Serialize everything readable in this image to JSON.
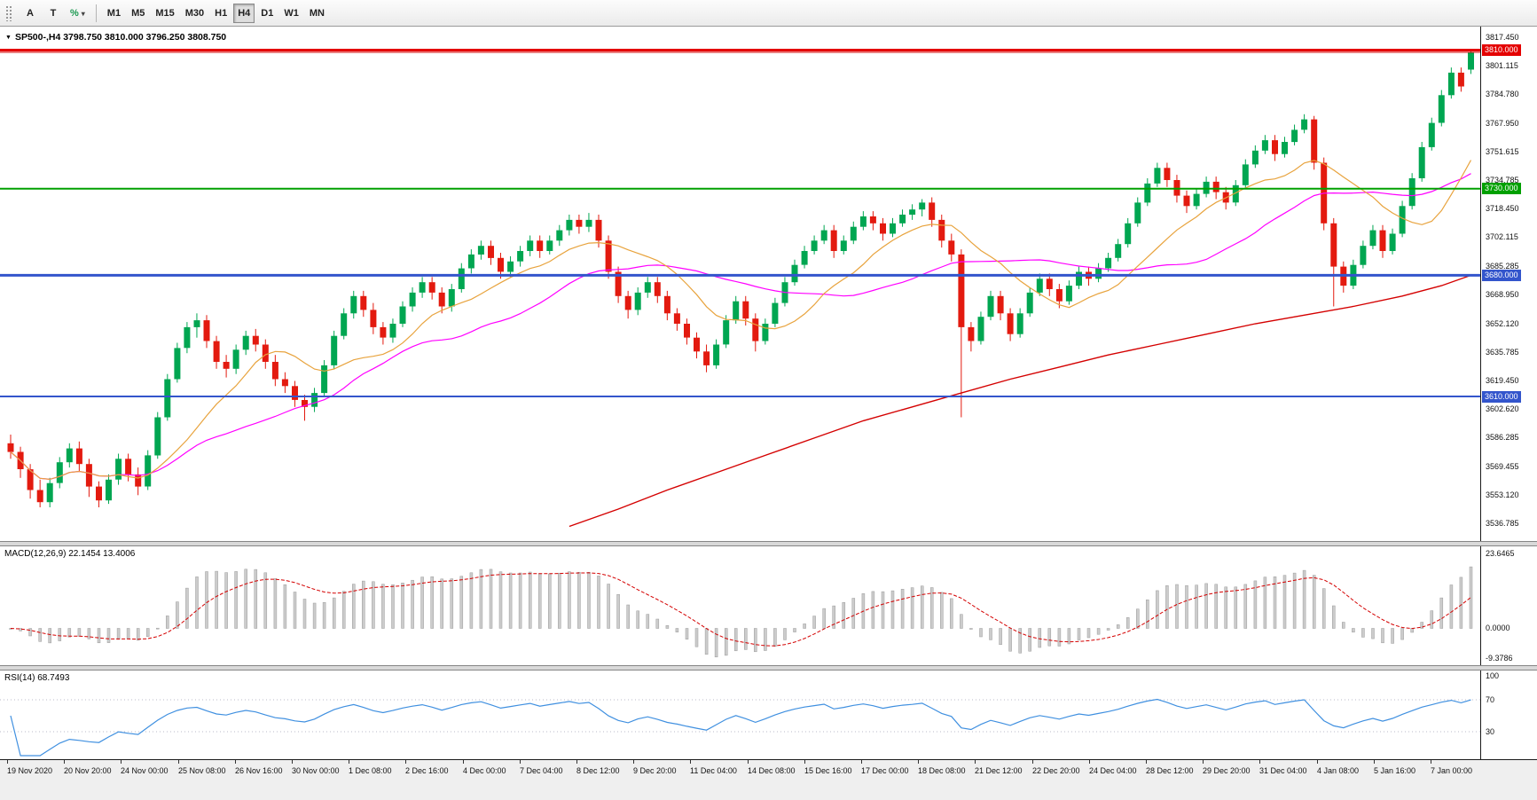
{
  "toolbar": {
    "left_buttons": [
      {
        "label": "A"
      },
      {
        "label": "T"
      }
    ],
    "percent_icon": "%",
    "caret": "▾",
    "timeframes": [
      "M1",
      "M5",
      "M15",
      "M30",
      "H1",
      "H4",
      "D1",
      "W1",
      "MN"
    ],
    "active_timeframe": "H4"
  },
  "symbol_header": {
    "marker": "▼",
    "text": "SP500-,H4 3798.750 3810.000 3796.250 3808.750"
  },
  "chart_data": {
    "type": "candlestick",
    "symbol": "SP500-",
    "timeframe": "H4",
    "ohlc_display": {
      "open": "3798.750",
      "high": "3810.000",
      "low": "3796.250",
      "close": "3808.750"
    },
    "style": {
      "up_color": "#00A651",
      "down_color": "#E31A0F",
      "ma_orange": "#E8A33D",
      "ma_magenta": "#FF00FF",
      "ma_red": "#D40000"
    },
    "price_axis": {
      "min": 3536.785,
      "max": 3817.45,
      "ticks": [
        "3817.450",
        "3801.115",
        "3784.780",
        "3767.950",
        "3751.615",
        "3734.785",
        "3718.450",
        "3702.115",
        "3685.285",
        "3668.950",
        "3652.120",
        "3635.785",
        "3619.450",
        "3602.620",
        "3586.285",
        "3569.455",
        "3553.120",
        "3536.785"
      ]
    },
    "hlines": [
      {
        "price": 3810.0,
        "label": "3810.000",
        "color": "#E40000",
        "width": 3
      },
      {
        "price": 3730.0,
        "label": "3730.000",
        "color": "#00A000",
        "width": 2
      },
      {
        "price": 3680.0,
        "label": "3680.000",
        "color": "#3355CC",
        "width": 3
      },
      {
        "price": 3610.0,
        "label": "3610.000",
        "color": "#3355CC",
        "width": 2
      }
    ],
    "price_line": {
      "price": 3808.75,
      "color": "#D40000"
    },
    "slow_ma": {
      "color": "#D40000",
      "points": [
        [
          57,
          3535
        ],
        [
          62,
          3545
        ],
        [
          67,
          3556
        ],
        [
          72,
          3566
        ],
        [
          77,
          3576
        ],
        [
          82,
          3586
        ],
        [
          87,
          3596
        ],
        [
          92,
          3604
        ],
        [
          97,
          3612
        ],
        [
          102,
          3620
        ],
        [
          107,
          3627
        ],
        [
          112,
          3634
        ],
        [
          117,
          3640
        ],
        [
          122,
          3646
        ],
        [
          127,
          3652
        ],
        [
          132,
          3657
        ],
        [
          137,
          3662
        ],
        [
          142,
          3668
        ],
        [
          146,
          3674
        ],
        [
          149,
          3680
        ]
      ]
    },
    "ma_smoothing": {
      "orange_window": 12,
      "magenta_window": 26
    },
    "candles": [
      [
        3583,
        3588,
        3574,
        3578
      ],
      [
        3578,
        3581,
        3563,
        3568
      ],
      [
        3568,
        3571,
        3551,
        3556
      ],
      [
        3556,
        3562,
        3546,
        3549
      ],
      [
        3549,
        3563,
        3546,
        3560
      ],
      [
        3560,
        3575,
        3557,
        3572
      ],
      [
        3572,
        3583,
        3569,
        3580
      ],
      [
        3580,
        3584,
        3567,
        3571
      ],
      [
        3571,
        3574,
        3552,
        3558
      ],
      [
        3558,
        3561,
        3546,
        3550
      ],
      [
        3550,
        3565,
        3548,
        3562
      ],
      [
        3562,
        3577,
        3559,
        3574
      ],
      [
        3574,
        3577,
        3561,
        3565
      ],
      [
        3565,
        3569,
        3553,
        3558
      ],
      [
        3558,
        3579,
        3556,
        3576
      ],
      [
        3576,
        3601,
        3574,
        3598
      ],
      [
        3598,
        3623,
        3596,
        3620
      ],
      [
        3620,
        3641,
        3618,
        3638
      ],
      [
        3638,
        3653,
        3635,
        3650
      ],
      [
        3650,
        3658,
        3644,
        3654
      ],
      [
        3654,
        3657,
        3638,
        3642
      ],
      [
        3642,
        3645,
        3626,
        3630
      ],
      [
        3630,
        3634,
        3621,
        3626
      ],
      [
        3626,
        3640,
        3623,
        3637
      ],
      [
        3637,
        3648,
        3634,
        3645
      ],
      [
        3645,
        3649,
        3636,
        3640
      ],
      [
        3640,
        3643,
        3626,
        3630
      ],
      [
        3630,
        3634,
        3616,
        3620
      ],
      [
        3620,
        3624,
        3612,
        3616
      ],
      [
        3616,
        3619,
        3604,
        3608
      ],
      [
        3608,
        3611,
        3596,
        3604
      ],
      [
        3604,
        3615,
        3601,
        3612
      ],
      [
        3612,
        3631,
        3610,
        3628
      ],
      [
        3628,
        3648,
        3626,
        3645
      ],
      [
        3645,
        3661,
        3643,
        3658
      ],
      [
        3658,
        3671,
        3655,
        3668
      ],
      [
        3668,
        3671,
        3656,
        3660
      ],
      [
        3660,
        3664,
        3646,
        3650
      ],
      [
        3650,
        3653,
        3640,
        3644
      ],
      [
        3644,
        3655,
        3641,
        3652
      ],
      [
        3652,
        3665,
        3650,
        3662
      ],
      [
        3662,
        3673,
        3659,
        3670
      ],
      [
        3670,
        3679,
        3667,
        3676
      ],
      [
        3676,
        3679,
        3666,
        3670
      ],
      [
        3670,
        3673,
        3658,
        3662
      ],
      [
        3662,
        3675,
        3659,
        3672
      ],
      [
        3672,
        3687,
        3670,
        3684
      ],
      [
        3684,
        3695,
        3681,
        3692
      ],
      [
        3692,
        3700,
        3689,
        3697
      ],
      [
        3697,
        3700,
        3686,
        3690
      ],
      [
        3690,
        3693,
        3678,
        3682
      ],
      [
        3682,
        3691,
        3679,
        3688
      ],
      [
        3688,
        3697,
        3685,
        3694
      ],
      [
        3694,
        3703,
        3691,
        3700
      ],
      [
        3700,
        3703,
        3690,
        3694
      ],
      [
        3694,
        3703,
        3692,
        3700
      ],
      [
        3700,
        3709,
        3697,
        3706
      ],
      [
        3706,
        3715,
        3703,
        3712
      ],
      [
        3712,
        3715,
        3704,
        3708
      ],
      [
        3708,
        3716,
        3705,
        3712
      ],
      [
        3712,
        3715,
        3696,
        3700
      ],
      [
        3700,
        3703,
        3678,
        3682
      ],
      [
        3682,
        3685,
        3664,
        3668
      ],
      [
        3668,
        3671,
        3655,
        3660
      ],
      [
        3660,
        3673,
        3657,
        3670
      ],
      [
        3670,
        3679,
        3667,
        3676
      ],
      [
        3676,
        3679,
        3664,
        3668
      ],
      [
        3668,
        3671,
        3654,
        3658
      ],
      [
        3658,
        3661,
        3648,
        3652
      ],
      [
        3652,
        3655,
        3640,
        3644
      ],
      [
        3644,
        3647,
        3632,
        3636
      ],
      [
        3636,
        3640,
        3624,
        3628
      ],
      [
        3628,
        3643,
        3626,
        3640
      ],
      [
        3640,
        3657,
        3638,
        3654
      ],
      [
        3654,
        3668,
        3652,
        3665
      ],
      [
        3665,
        3668,
        3651,
        3655
      ],
      [
        3655,
        3658,
        3636,
        3642
      ],
      [
        3642,
        3655,
        3640,
        3652
      ],
      [
        3652,
        3667,
        3650,
        3664
      ],
      [
        3664,
        3679,
        3662,
        3676
      ],
      [
        3676,
        3689,
        3674,
        3686
      ],
      [
        3686,
        3697,
        3684,
        3694
      ],
      [
        3694,
        3703,
        3692,
        3700
      ],
      [
        3700,
        3709,
        3698,
        3706
      ],
      [
        3706,
        3709,
        3690,
        3694
      ],
      [
        3694,
        3703,
        3692,
        3700
      ],
      [
        3700,
        3711,
        3698,
        3708
      ],
      [
        3708,
        3717,
        3706,
        3714
      ],
      [
        3714,
        3717,
        3706,
        3710
      ],
      [
        3710,
        3713,
        3700,
        3704
      ],
      [
        3704,
        3713,
        3702,
        3710
      ],
      [
        3710,
        3718,
        3708,
        3715
      ],
      [
        3715,
        3721,
        3712,
        3718
      ],
      [
        3718,
        3724,
        3714,
        3722
      ],
      [
        3722,
        3725,
        3708,
        3712
      ],
      [
        3712,
        3715,
        3696,
        3700
      ],
      [
        3700,
        3704,
        3688,
        3692
      ],
      [
        3692,
        3695,
        3598,
        3650
      ],
      [
        3650,
        3653,
        3636,
        3642
      ],
      [
        3642,
        3659,
        3640,
        3656
      ],
      [
        3656,
        3671,
        3654,
        3668
      ],
      [
        3668,
        3671,
        3654,
        3658
      ],
      [
        3658,
        3661,
        3642,
        3646
      ],
      [
        3646,
        3661,
        3644,
        3658
      ],
      [
        3658,
        3673,
        3656,
        3670
      ],
      [
        3670,
        3681,
        3668,
        3678
      ],
      [
        3678,
        3681,
        3668,
        3672
      ],
      [
        3672,
        3675,
        3661,
        3665
      ],
      [
        3665,
        3677,
        3663,
        3674
      ],
      [
        3674,
        3685,
        3672,
        3682
      ],
      [
        3682,
        3685,
        3674,
        3678
      ],
      [
        3678,
        3687,
        3676,
        3684
      ],
      [
        3684,
        3693,
        3682,
        3690
      ],
      [
        3690,
        3701,
        3688,
        3698
      ],
      [
        3698,
        3713,
        3696,
        3710
      ],
      [
        3710,
        3725,
        3708,
        3722
      ],
      [
        3722,
        3736,
        3720,
        3733
      ],
      [
        3733,
        3745,
        3731,
        3742
      ],
      [
        3742,
        3745,
        3731,
        3735
      ],
      [
        3735,
        3738,
        3722,
        3726
      ],
      [
        3726,
        3729,
        3716,
        3720
      ],
      [
        3720,
        3730,
        3718,
        3727
      ],
      [
        3727,
        3737,
        3725,
        3734
      ],
      [
        3734,
        3737,
        3724,
        3728
      ],
      [
        3728,
        3731,
        3718,
        3722
      ],
      [
        3722,
        3735,
        3720,
        3732
      ],
      [
        3732,
        3747,
        3730,
        3744
      ],
      [
        3744,
        3755,
        3742,
        3752
      ],
      [
        3752,
        3761,
        3750,
        3758
      ],
      [
        3758,
        3761,
        3746,
        3750
      ],
      [
        3750,
        3760,
        3748,
        3757
      ],
      [
        3757,
        3767,
        3755,
        3764
      ],
      [
        3764,
        3773,
        3762,
        3770
      ],
      [
        3770,
        3772,
        3741,
        3745
      ],
      [
        3745,
        3748,
        3706,
        3710
      ],
      [
        3710,
        3713,
        3662,
        3685
      ],
      [
        3685,
        3688,
        3670,
        3674
      ],
      [
        3674,
        3689,
        3672,
        3686
      ],
      [
        3686,
        3700,
        3684,
        3697
      ],
      [
        3697,
        3709,
        3695,
        3706
      ],
      [
        3706,
        3709,
        3690,
        3694
      ],
      [
        3694,
        3707,
        3692,
        3704
      ],
      [
        3704,
        3723,
        3702,
        3720
      ],
      [
        3720,
        3739,
        3718,
        3736
      ],
      [
        3736,
        3757,
        3734,
        3754
      ],
      [
        3754,
        3771,
        3752,
        3768
      ],
      [
        3768,
        3787,
        3766,
        3784
      ],
      [
        3784,
        3800,
        3782,
        3797
      ],
      [
        3797,
        3800,
        3786,
        3789
      ],
      [
        3798.75,
        3810,
        3796.25,
        3808.75
      ]
    ],
    "time_axis": [
      "19 Nov 2020",
      "20 Nov 20:00",
      "24 Nov 00:00",
      "25 Nov 08:00",
      "26 Nov 16:00",
      "30 Nov 00:00",
      "1 Dec 08:00",
      "2 Dec 16:00",
      "4 Dec 00:00",
      "7 Dec 04:00",
      "8 Dec 12:00",
      "9 Dec 20:00",
      "11 Dec 04:00",
      "14 Dec 08:00",
      "15 Dec 16:00",
      "17 Dec 00:00",
      "18 Dec 08:00",
      "21 Dec 12:00",
      "22 Dec 20:00",
      "24 Dec 04:00",
      "28 Dec 12:00",
      "29 Dec 20:00",
      "31 Dec 04:00",
      "4 Jan 08:00",
      "5 Jan 16:00",
      "7 Jan 00:00"
    ],
    "macd": {
      "label": "MACD(12,26,9) 22.1454 13.4006",
      "fast": 12,
      "slow": 26,
      "signal": 9,
      "value": "22.1454",
      "signal_value": "13.4006",
      "axis": [
        "23.6465",
        "0.0000",
        "-9.3786"
      ],
      "range": {
        "min": -9.3786,
        "max": 23.6465
      },
      "hist_color": "#CCCCCC",
      "hist_border": "#9B9B9B",
      "signal_color": "#D40000"
    },
    "rsi": {
      "label": "RSI(14) 68.7493",
      "period": 14,
      "value": "68.7493",
      "axis": [
        "100",
        "70",
        "30"
      ],
      "levels": [
        70,
        30
      ],
      "color": "#4090E0",
      "level_color": "#B9B9C9"
    }
  }
}
